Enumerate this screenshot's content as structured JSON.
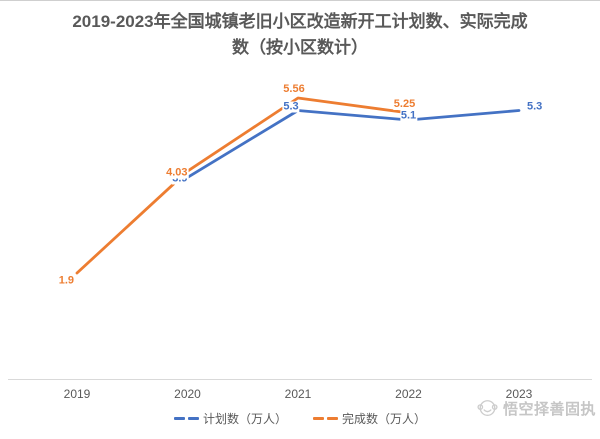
{
  "watermark": {
    "icon": "wukong-monkey-icon",
    "text": "悟空择善固执"
  },
  "chart_data": {
    "type": "line",
    "title": "2019-2023年全国城镇老旧小区改造新开工计划数、实际完成数（按小区数计）",
    "categories": [
      "2019",
      "2020",
      "2021",
      "2022",
      "2023"
    ],
    "series": [
      {
        "name": "计划数（万人）",
        "color": "#4472C4",
        "x": [
          2020,
          2021,
          2022,
          2023
        ],
        "values": [
          3.9,
          5.3,
          5.1,
          5.3
        ],
        "labels": [
          "3.9",
          "5.3",
          "5.1",
          "5.3"
        ],
        "label_pos": [
          "left",
          "on-above-left",
          "on-above",
          "right"
        ]
      },
      {
        "name": "完成数（万人）",
        "color": "#ED7D31",
        "x": [
          2019,
          2020,
          2021,
          2022
        ],
        "values": [
          1.9,
          4.03,
          5.56,
          5.25
        ],
        "labels": [
          "1.9",
          "4.03",
          "5.56",
          "5.25"
        ],
        "label_pos": [
          "left-below",
          "left",
          "above",
          "above"
        ]
      }
    ],
    "xlabel": "",
    "ylabel": "",
    "x_range": [
      2019,
      2023
    ],
    "y_axis_visible": false,
    "grid": false,
    "legend_position": "bottom",
    "colors": {
      "axis_line": "#D9D9D9",
      "title_text": "#595959",
      "tick_text": "#595959",
      "watermark_text": "#C6C6C6"
    }
  }
}
